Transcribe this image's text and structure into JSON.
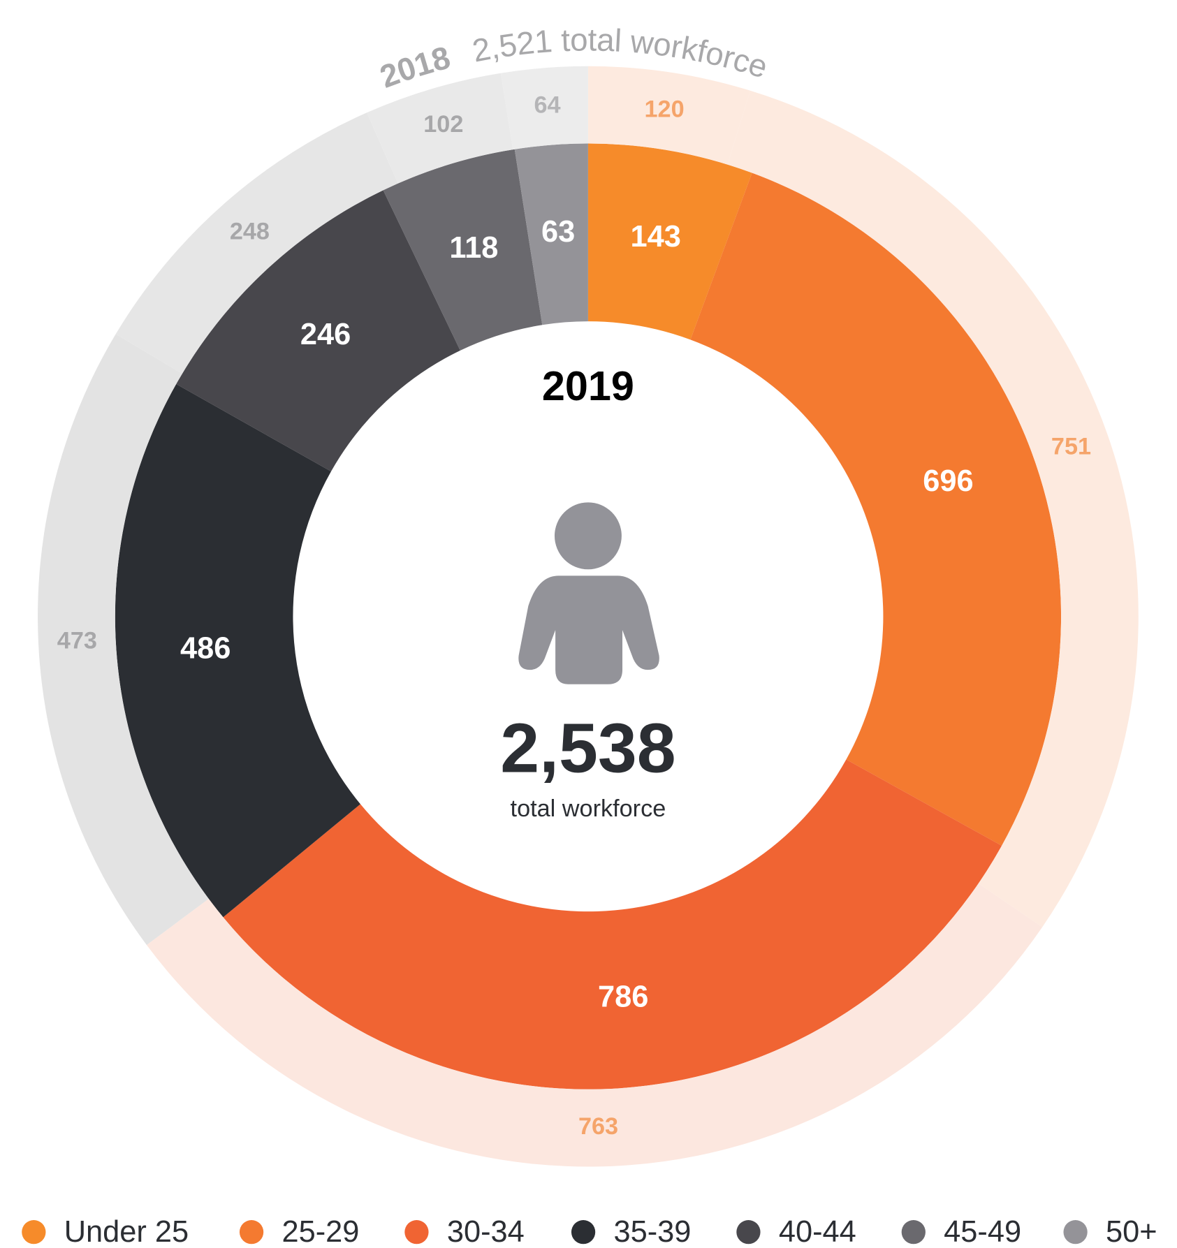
{
  "chart_data": {
    "type": "donut",
    "categories": [
      "Under 25",
      "25-29",
      "30-34",
      "35-39",
      "40-44",
      "45-49",
      "50+"
    ],
    "series": [
      {
        "name": "2019",
        "values": [
          143,
          696,
          786,
          486,
          246,
          118,
          63
        ],
        "colors": [
          "#f68b2a",
          "#f47a30",
          "#f06433",
          "#2b2e33",
          "#48474c",
          "#6a696e",
          "#949398"
        ],
        "label_color": "#ffffff",
        "total_label": "2,538",
        "total_caption": "total workforce"
      },
      {
        "name": "2018",
        "values": [
          120,
          751,
          763,
          473,
          248,
          102,
          64
        ],
        "colors": [
          "#fdeadf",
          "#fdeadf",
          "#fce7df",
          "#e3e3e3",
          "#e6e6e6",
          "#e9e9e9",
          "#ececec"
        ],
        "label_colors": [
          "#f5a46a",
          "#f5a46a",
          "#f5a46a",
          "#a7a7a9",
          "#a7a7a9",
          "#a7a7a9",
          "#b5b5b7"
        ],
        "total_label": "2,521 total workforce"
      }
    ]
  }
}
